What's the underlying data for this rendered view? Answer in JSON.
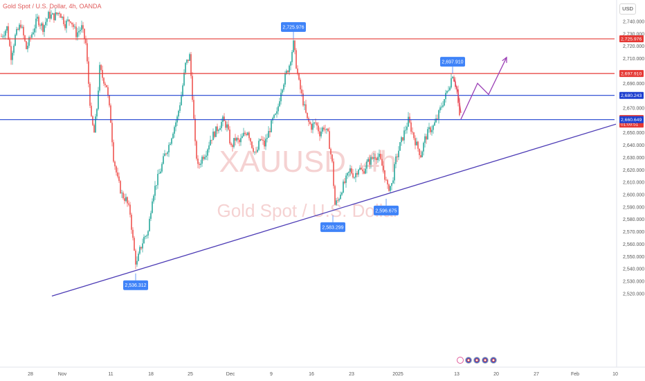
{
  "header": {
    "title": "Gold Spot / U.S. Dollar, 4h, OANDA",
    "currency": "USD"
  },
  "watermark": {
    "symbol": "XAUUSD, 4h",
    "name": "Gold Spot / U.S. Dollar"
  },
  "colors": {
    "up_candle": "#26a69a",
    "down_candle": "#ef5350",
    "resistance_line": "#e53935",
    "support_line": "#1e40d0",
    "trendline": "#4c3bb5",
    "projection_up": "#9b3fb5",
    "projection_down": "#e04a6a",
    "callout_bg": "#3f83f8",
    "price_tag_red": "#e53935",
    "price_tag_blue": "#1e40d0"
  },
  "chart_data": {
    "type": "candlestick",
    "title": "Gold Spot / U.S. Dollar, 4h, OANDA",
    "ylim": [
      2515,
      2750
    ],
    "y_ticks": [
      "2,740.000",
      "2,730.000",
      "2,720.000",
      "2,710.000",
      "2,690.000",
      "2,670.000",
      "2,650.000",
      "2,640.000",
      "2,630.000",
      "2,620.000",
      "2,610.000",
      "2,600.000",
      "2,590.000",
      "2,580.000",
      "2,570.000",
      "2,560.000",
      "2,550.000",
      "2,540.000",
      "2,530.000",
      "2,520.000"
    ],
    "y_tick_values": [
      2740,
      2730,
      2720,
      2710,
      2690,
      2670,
      2650,
      2640,
      2630,
      2620,
      2610,
      2600,
      2590,
      2580,
      2570,
      2560,
      2550,
      2540,
      2530,
      2520
    ],
    "x_ticks": [
      {
        "label": "28",
        "x": 44
      },
      {
        "label": "Nov",
        "x": 90
      },
      {
        "label": "11",
        "x": 160
      },
      {
        "label": "18",
        "x": 218
      },
      {
        "label": "25",
        "x": 275
      },
      {
        "label": "Dec",
        "x": 333
      },
      {
        "label": "9",
        "x": 392
      },
      {
        "label": "16",
        "x": 450
      },
      {
        "label": "23",
        "x": 508
      },
      {
        "label": "2025",
        "x": 575
      },
      {
        "label": "13",
        "x": 660
      },
      {
        "label": "20",
        "x": 717
      },
      {
        "label": "27",
        "x": 775
      },
      {
        "label": "Feb",
        "x": 831
      },
      {
        "label": "10",
        "x": 889
      }
    ],
    "price_path": [
      {
        "x": 2,
        "p": 2728
      },
      {
        "x": 10,
        "p": 2735
      },
      {
        "x": 16,
        "p": 2712
      },
      {
        "x": 22,
        "p": 2728
      },
      {
        "x": 30,
        "p": 2738
      },
      {
        "x": 38,
        "p": 2718
      },
      {
        "x": 46,
        "p": 2730
      },
      {
        "x": 54,
        "p": 2742
      },
      {
        "x": 62,
        "p": 2735
      },
      {
        "x": 70,
        "p": 2745
      },
      {
        "x": 78,
        "p": 2744
      },
      {
        "x": 86,
        "p": 2748
      },
      {
        "x": 94,
        "p": 2738
      },
      {
        "x": 102,
        "p": 2742
      },
      {
        "x": 110,
        "p": 2730
      },
      {
        "x": 118,
        "p": 2735
      },
      {
        "x": 124,
        "p": 2722
      },
      {
        "x": 128,
        "p": 2690
      },
      {
        "x": 132,
        "p": 2660
      },
      {
        "x": 136,
        "p": 2650
      },
      {
        "x": 140,
        "p": 2670
      },
      {
        "x": 144,
        "p": 2702
      },
      {
        "x": 148,
        "p": 2695
      },
      {
        "x": 154,
        "p": 2688
      },
      {
        "x": 160,
        "p": 2660
      },
      {
        "x": 164,
        "p": 2630
      },
      {
        "x": 170,
        "p": 2612
      },
      {
        "x": 176,
        "p": 2600
      },
      {
        "x": 182,
        "p": 2596
      },
      {
        "x": 188,
        "p": 2585
      },
      {
        "x": 193,
        "p": 2558
      },
      {
        "x": 197,
        "p": 2542
      },
      {
        "x": 202,
        "p": 2555
      },
      {
        "x": 208,
        "p": 2565
      },
      {
        "x": 214,
        "p": 2570
      },
      {
        "x": 220,
        "p": 2598
      },
      {
        "x": 226,
        "p": 2610
      },
      {
        "x": 232,
        "p": 2620
      },
      {
        "x": 238,
        "p": 2632
      },
      {
        "x": 244,
        "p": 2640
      },
      {
        "x": 250,
        "p": 2652
      },
      {
        "x": 256,
        "p": 2662
      },
      {
        "x": 262,
        "p": 2680
      },
      {
        "x": 268,
        "p": 2705
      },
      {
        "x": 274,
        "p": 2712
      },
      {
        "x": 278,
        "p": 2680
      },
      {
        "x": 282,
        "p": 2640
      },
      {
        "x": 286,
        "p": 2622
      },
      {
        "x": 292,
        "p": 2630
      },
      {
        "x": 298,
        "p": 2635
      },
      {
        "x": 304,
        "p": 2645
      },
      {
        "x": 310,
        "p": 2650
      },
      {
        "x": 316,
        "p": 2655
      },
      {
        "x": 322,
        "p": 2660
      },
      {
        "x": 328,
        "p": 2655
      },
      {
        "x": 334,
        "p": 2638
      },
      {
        "x": 340,
        "p": 2645
      },
      {
        "x": 346,
        "p": 2642
      },
      {
        "x": 352,
        "p": 2648
      },
      {
        "x": 358,
        "p": 2652
      },
      {
        "x": 364,
        "p": 2640
      },
      {
        "x": 370,
        "p": 2632
      },
      {
        "x": 376,
        "p": 2645
      },
      {
        "x": 382,
        "p": 2640
      },
      {
        "x": 388,
        "p": 2650
      },
      {
        "x": 394,
        "p": 2660
      },
      {
        "x": 400,
        "p": 2665
      },
      {
        "x": 406,
        "p": 2685
      },
      {
        "x": 412,
        "p": 2695
      },
      {
        "x": 418,
        "p": 2705
      },
      {
        "x": 424,
        "p": 2722
      },
      {
        "x": 428,
        "p": 2705
      },
      {
        "x": 432,
        "p": 2690
      },
      {
        "x": 438,
        "p": 2675
      },
      {
        "x": 444,
        "p": 2660
      },
      {
        "x": 450,
        "p": 2655
      },
      {
        "x": 456,
        "p": 2658
      },
      {
        "x": 462,
        "p": 2650
      },
      {
        "x": 468,
        "p": 2655
      },
      {
        "x": 474,
        "p": 2648
      },
      {
        "x": 480,
        "p": 2625
      },
      {
        "x": 484,
        "p": 2592
      },
      {
        "x": 488,
        "p": 2595
      },
      {
        "x": 494,
        "p": 2605
      },
      {
        "x": 500,
        "p": 2612
      },
      {
        "x": 506,
        "p": 2620
      },
      {
        "x": 512,
        "p": 2615
      },
      {
        "x": 518,
        "p": 2622
      },
      {
        "x": 524,
        "p": 2618
      },
      {
        "x": 530,
        "p": 2625
      },
      {
        "x": 536,
        "p": 2628
      },
      {
        "x": 542,
        "p": 2632
      },
      {
        "x": 548,
        "p": 2630
      },
      {
        "x": 554,
        "p": 2620
      },
      {
        "x": 560,
        "p": 2605
      },
      {
        "x": 566,
        "p": 2608
      },
      {
        "x": 572,
        "p": 2628
      },
      {
        "x": 578,
        "p": 2640
      },
      {
        "x": 584,
        "p": 2650
      },
      {
        "x": 590,
        "p": 2660
      },
      {
        "x": 596,
        "p": 2650
      },
      {
        "x": 602,
        "p": 2640
      },
      {
        "x": 608,
        "p": 2632
      },
      {
        "x": 614,
        "p": 2645
      },
      {
        "x": 620,
        "p": 2652
      },
      {
        "x": 626,
        "p": 2655
      },
      {
        "x": 632,
        "p": 2662
      },
      {
        "x": 638,
        "p": 2672
      },
      {
        "x": 644,
        "p": 2680
      },
      {
        "x": 650,
        "p": 2690
      },
      {
        "x": 654,
        "p": 2698
      },
      {
        "x": 660,
        "p": 2685
      },
      {
        "x": 664,
        "p": 2662
      }
    ],
    "horizontal_levels": [
      {
        "value": 2725.976,
        "label": "2,725.976",
        "kind": "resistance"
      },
      {
        "value": 2697.91,
        "label": "2,697.910",
        "kind": "resistance"
      },
      {
        "value": 2680.243,
        "label": "2,680.243",
        "kind": "support"
      },
      {
        "value": 2661.525,
        "label": "2,661.525",
        "sub": "01:00:51",
        "kind": "current"
      },
      {
        "value": 2660.649,
        "label": "2,660.649",
        "kind": "support"
      }
    ],
    "callouts": [
      {
        "label": "2,725.976",
        "x": 424,
        "p": 2725.976,
        "pos": "above"
      },
      {
        "label": "2,697.910",
        "x": 654,
        "p": 2697.91,
        "pos": "above"
      },
      {
        "label": "2,583.299",
        "x": 481,
        "p": 2583.299,
        "pos": "below"
      },
      {
        "label": "2,596.675",
        "x": 558,
        "p": 2596.675,
        "pos": "below"
      },
      {
        "label": "2,536.312",
        "x": 196,
        "p": 2536.312,
        "pos": "below"
      }
    ],
    "trendline": {
      "x1": 75,
      "p1": 2518,
      "x2": 890,
      "p2": 2657
    },
    "projection_up": [
      {
        "x": 666,
        "p": 2661
      },
      {
        "x": 690,
        "p": 2690
      },
      {
        "x": 706,
        "p": 2681
      },
      {
        "x": 732,
        "p": 2711
      }
    ],
    "projection_down": [
      {
        "x": 656,
        "p": 2694
      },
      {
        "x": 662,
        "p": 2682
      },
      {
        "x": 666,
        "p": 2666
      }
    ]
  }
}
